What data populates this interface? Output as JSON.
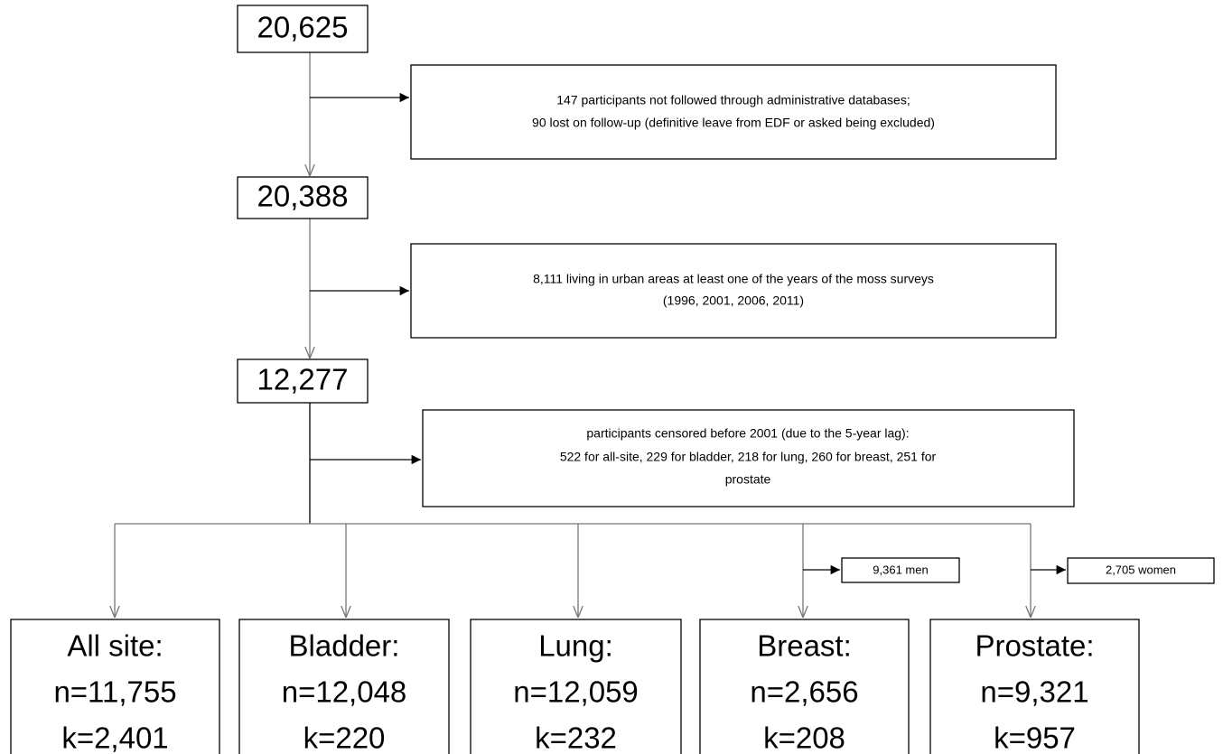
{
  "nodes": [
    {
      "label": "20,625"
    },
    {
      "lines": [
        "147 participants not followed through administrative databases;",
        "90 lost on follow-up  (definitive leave from EDF or asked being excluded)"
      ]
    },
    {
      "label": "20,388"
    },
    {
      "lines": [
        "8,111 living in urban areas at least one of the years of the moss surveys",
        "(1996, 2001, 2006, 2011)"
      ]
    },
    {
      "label": "12,277"
    },
    {
      "lines": [
        "participants censored before 2001 (due to the 5-year lag):",
        "522 for all-site, 229 for bladder, 218 for lung, 260 for breast, 251 for",
        "prostate"
      ]
    }
  ],
  "side_notes": [
    "9,361 men",
    "2,705 women"
  ],
  "outcomes": [
    {
      "lines": [
        "All site:",
        "n=11,755",
        "k=2,401"
      ]
    },
    {
      "lines": [
        "Bladder:",
        "n=12,048",
        "k=220"
      ]
    },
    {
      "lines": [
        "Lung:",
        "n=12,059",
        "k=232"
      ]
    },
    {
      "lines": [
        "Breast:",
        "n=2,656",
        "k=208"
      ]
    },
    {
      "lines": [
        "Prostate:",
        "n=9,321",
        "k=957"
      ]
    }
  ]
}
